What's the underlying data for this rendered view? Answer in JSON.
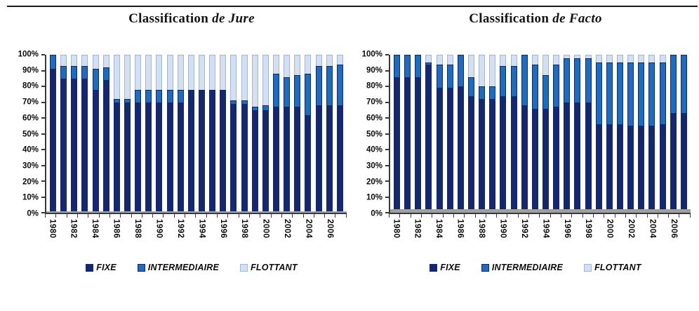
{
  "chart_data": [
    {
      "type": "bar",
      "stacked": true,
      "stack_unit": "percent",
      "title_main": "Classification",
      "title_italic": "de Jure",
      "categories": [
        "1980",
        "1981",
        "1982",
        "1983",
        "1984",
        "1985",
        "1986",
        "1987",
        "1988",
        "1989",
        "1990",
        "1991",
        "1992",
        "1993",
        "1994",
        "1995",
        "1996",
        "1997",
        "1998",
        "1999",
        "2000",
        "2001",
        "2002",
        "2003",
        "2004",
        "2005",
        "2006",
        "2007"
      ],
      "x_axis_labeled_every": 2,
      "y_ticks": [
        "0%",
        "10%",
        "20%",
        "30%",
        "40%",
        "50%",
        "60%",
        "70%",
        "80%",
        "90%",
        "100%"
      ],
      "ylim": [
        0,
        100
      ],
      "grid": false,
      "legend_position": "bottom",
      "series": [
        {
          "name": "FIXE",
          "color": "#15286d",
          "values": [
            91,
            85,
            85,
            85,
            78,
            84,
            70,
            70,
            70,
            70,
            70,
            70,
            70,
            78,
            78,
            78,
            78,
            69,
            69,
            65,
            65,
            67,
            67,
            67,
            62,
            68,
            68,
            68
          ]
        },
        {
          "name": "INTERMEDIAIRE",
          "color": "#1e6bc0",
          "border_color": "#0e2a60",
          "values": [
            9,
            8,
            8,
            8,
            13,
            8,
            2,
            2,
            8,
            8,
            8,
            8,
            8,
            0,
            0,
            0,
            0,
            2,
            2,
            2,
            3,
            21,
            19,
            20,
            26,
            25,
            25,
            26
          ]
        },
        {
          "name": "FLOTTANT",
          "color": "#d4dff1",
          "border_color": "#a3b6d4",
          "values": [
            0,
            7,
            7,
            7,
            9,
            8,
            28,
            28,
            22,
            22,
            22,
            22,
            22,
            22,
            22,
            22,
            22,
            29,
            29,
            33,
            32,
            12,
            14,
            13,
            12,
            7,
            7,
            6
          ]
        }
      ]
    },
    {
      "type": "bar",
      "stacked": true,
      "stack_unit": "percent",
      "title_main": "Classification",
      "title_italic": "de Facto",
      "categories": [
        "1980",
        "1981",
        "1982",
        "1983",
        "1984",
        "1985",
        "1986",
        "1987",
        "1988",
        "1989",
        "1990",
        "1991",
        "1992",
        "1993",
        "1994",
        "1995",
        "1996",
        "1997",
        "1998",
        "1999",
        "2000",
        "2001",
        "2002",
        "2003",
        "2004",
        "2005",
        "2006",
        "2007"
      ],
      "x_axis_labeled_every": 2,
      "y_ticks": [
        "0%",
        "10%",
        "20%",
        "30%",
        "40%",
        "50%",
        "60%",
        "70%",
        "80%",
        "90%",
        "100%"
      ],
      "ylim": [
        0,
        100
      ],
      "grid": false,
      "legend_position": "bottom",
      "series": [
        {
          "name": "FIXE",
          "color": "#15286d",
          "values": [
            86,
            86,
            86,
            94,
            79,
            79,
            80,
            74,
            72,
            72,
            74,
            74,
            68,
            66,
            66,
            67,
            70,
            70,
            70,
            56,
            56,
            56,
            55,
            55,
            55,
            56,
            63,
            63
          ]
        },
        {
          "name": "INTERMEDIAIRE",
          "color": "#1e6bc0",
          "border_color": "#0e2a60",
          "values": [
            14,
            14,
            14,
            1,
            15,
            15,
            20,
            12,
            8,
            8,
            19,
            19,
            32,
            28,
            21,
            27,
            28,
            28,
            28,
            39,
            39,
            39,
            40,
            40,
            40,
            39,
            37,
            37
          ]
        },
        {
          "name": "FLOTTANT",
          "color": "#d4dff1",
          "border_color": "#a3b6d4",
          "values": [
            0,
            0,
            0,
            5,
            6,
            6,
            0,
            14,
            20,
            20,
            7,
            7,
            0,
            6,
            13,
            6,
            2,
            2,
            2,
            5,
            5,
            5,
            5,
            5,
            5,
            5,
            0,
            0
          ]
        }
      ]
    }
  ]
}
